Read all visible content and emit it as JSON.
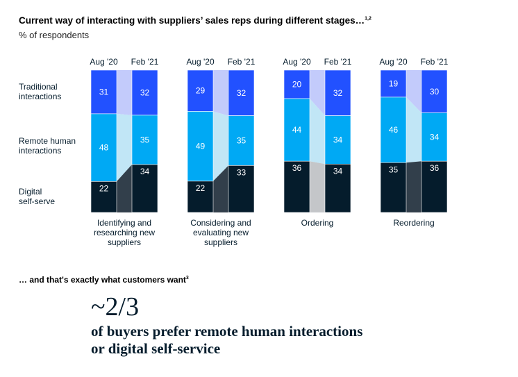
{
  "title": "Current way of interacting with suppliers’ sales reps during different stages…",
  "title_footnote": "1,2",
  "subtitle": "% of respondents",
  "chart_data": {
    "type": "bar",
    "stacked": true,
    "unit": "% of respondents",
    "periods": [
      "Aug '20",
      "Feb '21"
    ],
    "row_labels": [
      [
        "Traditional",
        "interactions"
      ],
      [
        "Remote human",
        "interactions"
      ],
      [
        "Digital",
        "self-serve"
      ]
    ],
    "groups": [
      {
        "label": [
          "Identifying and",
          "researching new",
          "suppliers"
        ],
        "values": {
          "traditional": [
            31,
            32
          ],
          "remote": [
            48,
            35
          ],
          "digital": [
            22,
            34
          ]
        }
      },
      {
        "label": [
          "Considering and",
          "evaluating new",
          "suppliers"
        ],
        "values": {
          "traditional": [
            29,
            32
          ],
          "remote": [
            49,
            35
          ],
          "digital": [
            22,
            33
          ]
        }
      },
      {
        "label": [
          "Ordering"
        ],
        "values": {
          "traditional": [
            20,
            32
          ],
          "remote": [
            44,
            34
          ],
          "digital": [
            36,
            34
          ]
        }
      },
      {
        "label": [
          "Reordering"
        ],
        "values": {
          "traditional": [
            19,
            30
          ],
          "remote": [
            46,
            34
          ],
          "digital": [
            35,
            36
          ]
        }
      }
    ],
    "colors": {
      "traditional": "#2251ff",
      "remote": "#00a9f4",
      "digital": "#051c2c",
      "traditional_up": "#c3cbfb",
      "traditional_down": "#5a7dfb",
      "remote_up": "#c1e6f6",
      "remote_down": "#c1e6f6",
      "digital_up": "#323f4b",
      "digital_down": "#c4c6c9"
    }
  },
  "subtitle2": "… and that's exactly what customers want",
  "subtitle2_footnote": "3",
  "big_number": "~2/3",
  "big_text_lines": [
    "of buyers prefer remote human interactions",
    "or digital self-service"
  ]
}
